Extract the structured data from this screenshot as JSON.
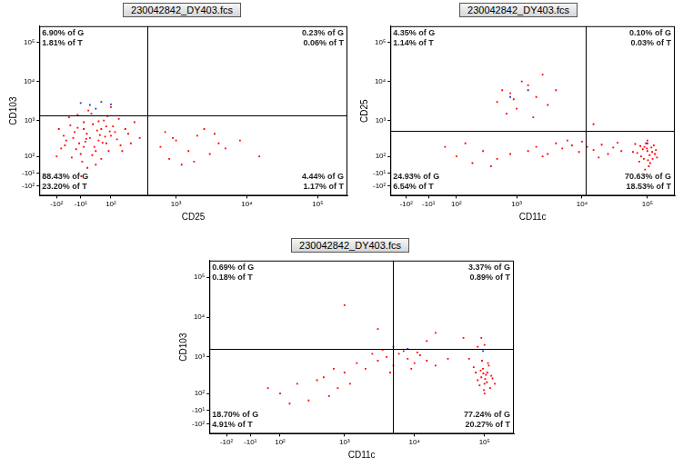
{
  "chart_data": [
    {
      "type": "scatter",
      "title": "230042842_DY403.fcs",
      "x_label": "CD25",
      "y_label": "CD103",
      "log": true,
      "grid": false,
      "xlim": [
        -200,
        262144
      ],
      "ylim": [
        -200,
        262144
      ],
      "xticks": [
        {
          "value": -100,
          "label": "-10²"
        },
        {
          "value": -10,
          "label": "-10¹"
        },
        {
          "value": 100,
          "label": "10²"
        },
        {
          "value": 1000,
          "label": "10³"
        },
        {
          "value": 10000,
          "label": "10⁴"
        },
        {
          "value": 100000,
          "label": "10⁵"
        }
      ],
      "yticks": [
        {
          "value": -100,
          "label": "-10²"
        },
        {
          "value": -10,
          "label": "-10¹"
        },
        {
          "value": 100,
          "label": "10²"
        },
        {
          "value": 1000,
          "label": "10³"
        },
        {
          "value": 10000,
          "label": "10⁴"
        },
        {
          "value": 100000,
          "label": "10⁵"
        }
      ],
      "gates": {
        "x": 390,
        "y": 1350
      },
      "annotations": {
        "upper_left": [
          "6.90% of G",
          "1.81% of T"
        ],
        "upper_right": [
          "0.23% of G",
          "0.06% of T"
        ],
        "lower_left": [
          "88.43% of G",
          "23.20% of T"
        ],
        "lower_right": [
          "4.44% of G",
          "1.17% of T"
        ]
      },
      "series": [
        {
          "color": "#ff0000",
          "points": [
            [
              -60,
              300
            ],
            [
              -30,
              500
            ],
            [
              0,
              200
            ],
            [
              20,
              350
            ],
            [
              40,
              150
            ],
            [
              60,
              600
            ],
            [
              80,
              250
            ],
            [
              100,
              400
            ],
            [
              -10,
              120
            ],
            [
              30,
              800
            ],
            [
              -80,
              180
            ],
            [
              -40,
              90
            ],
            [
              10,
              450
            ],
            [
              50,
              300
            ],
            [
              70,
              1000
            ],
            [
              120,
              500
            ],
            [
              150,
              220
            ],
            [
              -20,
              650
            ],
            [
              5,
              280
            ],
            [
              90,
              150
            ],
            [
              -50,
              1200
            ],
            [
              0,
              900
            ],
            [
              25,
              1500
            ],
            [
              60,
              80
            ],
            [
              110,
              700
            ],
            [
              -70,
              400
            ],
            [
              -15,
              250
            ],
            [
              35,
              200
            ],
            [
              75,
              380
            ],
            [
              130,
              320
            ],
            [
              200,
              450
            ],
            [
              250,
              900
            ],
            [
              -90,
              600
            ],
            [
              -5,
              60
            ],
            [
              15,
              1800
            ],
            [
              45,
              550
            ],
            [
              85,
              1300
            ],
            [
              160,
              150
            ],
            [
              -35,
              350
            ],
            [
              55,
              420
            ],
            [
              180,
              600
            ],
            [
              -25,
              170
            ],
            [
              8,
              330
            ],
            [
              65,
              260
            ],
            [
              95,
              520
            ],
            [
              140,
              1100
            ],
            [
              -45,
              750
            ],
            [
              28,
              110
            ],
            [
              300,
              350
            ],
            [
              -65,
              220
            ],
            [
              12,
              20
            ],
            [
              -8,
              -30
            ],
            [
              40,
              40
            ],
            [
              100,
              2200
            ],
            [
              -100,
              100
            ],
            [
              220,
              250
            ],
            [
              0,
              600
            ],
            [
              50,
              950
            ],
            [
              -20,
              1400
            ],
            [
              80,
              700
            ],
            [
              600,
              200
            ],
            [
              800,
              80
            ],
            [
              1000,
              300
            ],
            [
              1500,
              150
            ],
            [
              2000,
              400
            ],
            [
              3000,
              120
            ],
            [
              4000,
              250
            ],
            [
              700,
              500
            ],
            [
              1200,
              40
            ],
            [
              5000,
              180
            ],
            [
              8000,
              300
            ],
            [
              15000,
              100
            ],
            [
              2500,
              600
            ],
            [
              1800,
              60
            ],
            [
              900,
              350
            ],
            [
              3500,
              450
            ]
          ]
        },
        {
          "color": "#3030c0",
          "points": [
            [
              20,
              2500
            ],
            [
              60,
              3000
            ],
            [
              -10,
              2800
            ],
            [
              100,
              2600
            ],
            [
              40,
              2000
            ]
          ]
        }
      ]
    },
    {
      "type": "scatter",
      "title": "230042842_DY403.fcs",
      "x_label": "CD11c",
      "y_label": "CD25",
      "log": true,
      "grid": false,
      "xlim": [
        -200,
        262144
      ],
      "ylim": [
        -200,
        262144
      ],
      "xticks": [
        {
          "value": -100,
          "label": "-10²"
        },
        {
          "value": -10,
          "label": "-10¹"
        },
        {
          "value": 100,
          "label": "10²"
        },
        {
          "value": 1000,
          "label": "10³"
        },
        {
          "value": 10000,
          "label": "10⁴"
        },
        {
          "value": 100000,
          "label": "10⁵"
        }
      ],
      "yticks": [
        {
          "value": -100,
          "label": "-10²"
        },
        {
          "value": -10,
          "label": "-10¹"
        },
        {
          "value": 100,
          "label": "10²"
        },
        {
          "value": 1000,
          "label": "10³"
        },
        {
          "value": 10000,
          "label": "10⁴"
        },
        {
          "value": 100000,
          "label": "10⁵"
        }
      ],
      "gates": {
        "x": 11500,
        "y": 540
      },
      "annotations": {
        "upper_left": [
          "4.35% of G",
          "1.14% of T"
        ],
        "upper_right": [
          "0.10% of G",
          "0.03% of T"
        ],
        "lower_left": [
          "24.93% of G",
          "6.54% of T"
        ],
        "lower_right": [
          "70.63% of G",
          "18.53% of T"
        ]
      },
      "series": [
        {
          "color": "#ff0000",
          "points": [
            [
              80000,
              100
            ],
            [
              100000,
              150
            ],
            [
              120000,
              80
            ],
            [
              90000,
              200
            ],
            [
              110000,
              50
            ],
            [
              70000,
              130
            ],
            [
              130000,
              120
            ],
            [
              95000,
              250
            ],
            [
              105000,
              30
            ],
            [
              85000,
              170
            ],
            [
              115000,
              190
            ],
            [
              75000,
              60
            ],
            [
              140000,
              90
            ],
            [
              100000,
              300
            ],
            [
              60000,
              140
            ],
            [
              125000,
              220
            ],
            [
              92000,
              10
            ],
            [
              108000,
              110
            ],
            [
              88000,
              80
            ],
            [
              98000,
              180
            ],
            [
              65000,
              240
            ],
            [
              135000,
              160
            ],
            [
              102000,
              70
            ],
            [
              78000,
              210
            ],
            [
              118000,
              140
            ],
            [
              1500,
              150
            ],
            [
              2000,
              200
            ],
            [
              3000,
              120
            ],
            [
              4000,
              250
            ],
            [
              5000,
              180
            ],
            [
              7000,
              220
            ],
            [
              9000,
              140
            ],
            [
              12000,
              200
            ],
            [
              15000,
              160
            ],
            [
              20000,
              230
            ],
            [
              25000,
              120
            ],
            [
              30000,
              190
            ],
            [
              40000,
              150
            ],
            [
              6000,
              300
            ],
            [
              2500,
              100
            ],
            [
              10000,
              280
            ],
            [
              18000,
              90
            ],
            [
              35000,
              260
            ],
            [
              500,
              3000
            ],
            [
              800,
              5000
            ],
            [
              1000,
              2000
            ],
            [
              1500,
              8000
            ],
            [
              2000,
              4000
            ],
            [
              700,
              1500
            ],
            [
              1200,
              10000
            ],
            [
              3000,
              2500
            ],
            [
              600,
              6000
            ],
            [
              2500,
              15000
            ],
            [
              900,
              3500
            ],
            [
              1800,
              1200
            ],
            [
              4000,
              6000
            ],
            [
              100,
              100
            ],
            [
              200,
              50
            ],
            [
              300,
              150
            ],
            [
              500,
              80
            ],
            [
              50,
              200
            ],
            [
              800,
              120
            ],
            [
              400,
              30
            ],
            [
              150,
              250
            ],
            [
              15000,
              800
            ]
          ]
        },
        {
          "color": "#3030c0",
          "points": [
            [
              800,
              4000
            ],
            [
              1500,
              6000
            ],
            [
              100000,
              250
            ]
          ]
        }
      ]
    },
    {
      "type": "scatter",
      "title": "230042842_DY403.fcs",
      "x_label": "CD11c",
      "y_label": "CD103",
      "log": true,
      "grid": false,
      "xlim": [
        -200,
        262144
      ],
      "ylim": [
        -200,
        262144
      ],
      "xticks": [
        {
          "value": -100,
          "label": "-10²"
        },
        {
          "value": -10,
          "label": "-10¹"
        },
        {
          "value": 100,
          "label": "10²"
        },
        {
          "value": 1000,
          "label": "10³"
        },
        {
          "value": 10000,
          "label": "10⁴"
        },
        {
          "value": 100000,
          "label": "10⁵"
        }
      ],
      "yticks": [
        {
          "value": -100,
          "label": "-10²"
        },
        {
          "value": -10,
          "label": "-10¹"
        },
        {
          "value": 100,
          "label": "10²"
        },
        {
          "value": 1000,
          "label": "10³"
        },
        {
          "value": 10000,
          "label": "10⁴"
        },
        {
          "value": 100000,
          "label": "10⁵"
        }
      ],
      "gates": {
        "x": 4900,
        "y": 1600
      },
      "annotations": {
        "upper_left": [
          "0.69% of G",
          "0.18% of T"
        ],
        "upper_right": [
          "3.37% of G",
          "0.89% of T"
        ],
        "lower_left": [
          "18.70% of G",
          "4.91% of T"
        ],
        "lower_right": [
          "77.24% of G",
          "20.27% of T"
        ]
      },
      "series": [
        {
          "color": "#ff0000",
          "points": [
            [
              90000,
              300
            ],
            [
              100000,
              200
            ],
            [
              110000,
              400
            ],
            [
              80000,
              250
            ],
            [
              120000,
              150
            ],
            [
              95000,
              500
            ],
            [
              105000,
              350
            ],
            [
              85000,
              180
            ],
            [
              115000,
              600
            ],
            [
              100000,
              100
            ],
            [
              75000,
              400
            ],
            [
              130000,
              280
            ],
            [
              92000,
              800
            ],
            [
              108000,
              220
            ],
            [
              88000,
              450
            ],
            [
              98000,
              130
            ],
            [
              125000,
              330
            ],
            [
              70000,
              550
            ],
            [
              102000,
              270
            ],
            [
              112000,
              700
            ],
            [
              60000,
              900
            ],
            [
              140000,
              200
            ],
            [
              96000,
              380
            ],
            [
              100000,
              2000
            ],
            [
              90000,
              3000
            ],
            [
              80000,
              1800
            ],
            [
              3000,
              800
            ],
            [
              4000,
              1000
            ],
            [
              5000,
              600
            ],
            [
              6000,
              1200
            ],
            [
              8000,
              900
            ],
            [
              10000,
              700
            ],
            [
              12000,
              1100
            ],
            [
              15000,
              800
            ],
            [
              2000,
              500
            ],
            [
              2500,
              1200
            ],
            [
              7000,
              1400
            ],
            [
              20000,
              600
            ],
            [
              30000,
              900
            ],
            [
              4500,
              400
            ],
            [
              9000,
              500
            ],
            [
              1500,
              700
            ],
            [
              3500,
              1500
            ],
            [
              11000,
              1300
            ],
            [
              100,
              100
            ],
            [
              200,
              200
            ],
            [
              300,
              50
            ],
            [
              500,
              300
            ],
            [
              800,
              150
            ],
            [
              1000,
              400
            ],
            [
              150,
              30
            ],
            [
              400,
              250
            ],
            [
              600,
              80
            ],
            [
              1200,
              200
            ],
            [
              50,
              150
            ],
            [
              700,
              500
            ],
            [
              1000,
              20000
            ],
            [
              3000,
              5000
            ],
            [
              20000,
              4000
            ],
            [
              50000,
              3000
            ],
            [
              15000,
              2500
            ]
          ]
        },
        {
          "color": "#3030c0",
          "points": [
            [
              8000,
              1600
            ],
            [
              95000,
              1400
            ],
            [
              5000,
              1800
            ]
          ]
        }
      ]
    }
  ]
}
